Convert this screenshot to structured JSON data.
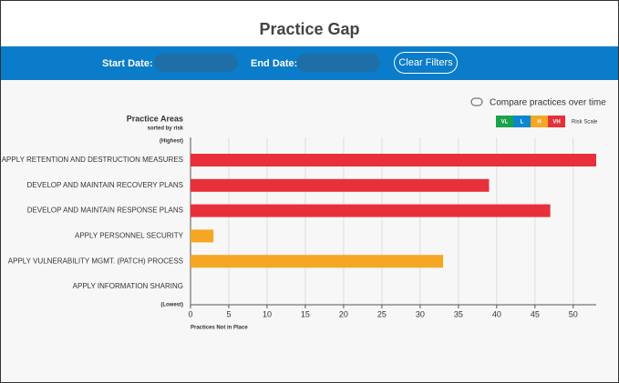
{
  "header": {
    "title": "Practice Gap"
  },
  "filters": {
    "start_label": "Start Date:",
    "end_label": "End Date:",
    "clear": "Clear Filters"
  },
  "compare_toggle": "Compare practices over time",
  "risk_scale": {
    "levels": [
      {
        "label": "VL",
        "color": "#1aa34a"
      },
      {
        "label": "L",
        "color": "#0b86d1"
      },
      {
        "label": "H",
        "color": "#f5a623"
      },
      {
        "label": "VH",
        "color": "#e8303a"
      }
    ],
    "label": "Risk Scale"
  },
  "chart_data": {
    "type": "bar",
    "orientation": "horizontal",
    "y_title": "Practice Areas",
    "y_subtitle": "sorted by risk",
    "y_top_note": "(Highest)",
    "y_bottom_note": "(Lowest)",
    "x_title": "Practices Not in Place",
    "categories": [
      "APPLY RETENTION AND DESTRUCTION MEASURES",
      "DEVELOP AND MAINTAIN RECOVERY PLANS",
      "DEVELOP AND MAINTAIN RESPONSE PLANS",
      "APPLY PERSONNEL SECURITY",
      "APPLY VULNERABILITY MGMT. (PATCH) PROCESS",
      "APPLY INFORMATION SHARING"
    ],
    "values": [
      53,
      39,
      47,
      3,
      33,
      0
    ],
    "colors": [
      "#e8303a",
      "#e8303a",
      "#e8303a",
      "#f5a623",
      "#f5a623",
      "#f5a623"
    ],
    "xlim": [
      0,
      53
    ],
    "xticks": [
      0,
      5,
      10,
      15,
      20,
      25,
      30,
      35,
      40,
      45,
      50
    ],
    "grid": true
  }
}
